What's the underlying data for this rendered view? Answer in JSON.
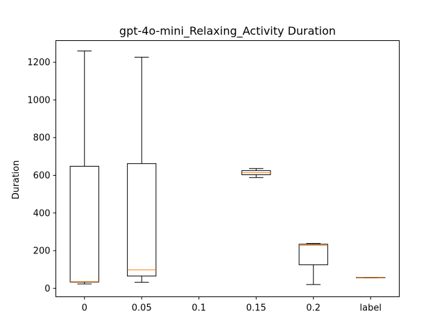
{
  "chart_data": {
    "type": "box",
    "title": "gpt-4o-mini_Relaxing_Activity Duration",
    "xlabel": "",
    "ylabel": "Duration",
    "categories": [
      "0",
      "0.05",
      "0.1",
      "0.15",
      "0.2",
      "label"
    ],
    "ylim": [
      -45,
      1315
    ],
    "yticks": [
      0,
      200,
      400,
      600,
      800,
      1000,
      1200
    ],
    "grid": false,
    "colors": {
      "box": "#000000",
      "median": "#ff7f0e",
      "axes": "#000000"
    },
    "boxes": [
      {
        "category": "0",
        "whisker_low": 23,
        "q1": 33,
        "median": 35,
        "q3": 648,
        "whisker_high": 1260
      },
      {
        "category": "0.05",
        "whisker_low": 32,
        "q1": 65,
        "median": 98,
        "q3": 662,
        "whisker_high": 1227
      },
      {
        "category": "0.1",
        "empty": true
      },
      {
        "category": "0.15",
        "whisker_low": 588,
        "q1": 603,
        "median": 614,
        "q3": 625,
        "whisker_high": 636
      },
      {
        "category": "0.2",
        "whisker_low": 20,
        "q1": 125,
        "median": 228,
        "q3": 234,
        "whisker_high": 238
      },
      {
        "category": "label",
        "whisker_low": 56,
        "q1": 56,
        "median": 57,
        "q3": 58,
        "whisker_high": 58
      }
    ]
  }
}
